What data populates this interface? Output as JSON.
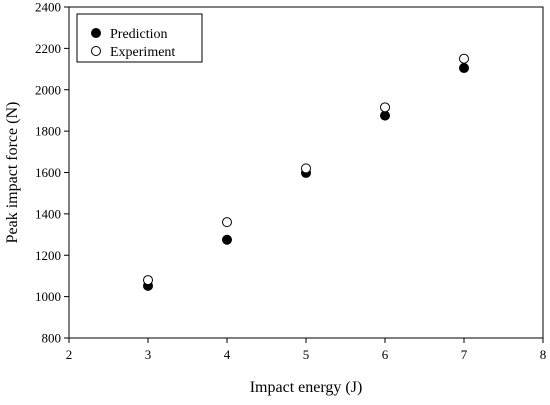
{
  "chart_data": {
    "type": "scatter",
    "title": "",
    "xlabel": "Impact energy (J)",
    "ylabel": "Peak impact force (N)",
    "xlim": [
      2,
      8
    ],
    "ylim": [
      800,
      2400
    ],
    "xticks": [
      "2",
      "3",
      "4",
      "5",
      "6",
      "7",
      "8"
    ],
    "yticks": [
      "800",
      "1000",
      "1200",
      "1400",
      "1600",
      "1800",
      "2000",
      "2200",
      "2400"
    ],
    "grid": false,
    "legend_position": "top-left",
    "series": [
      {
        "name": "Prediction",
        "marker": "filled-circle",
        "x": [
          3,
          4,
          5,
          6,
          7
        ],
        "y": [
          1052,
          1275,
          1598,
          1875,
          2105
        ]
      },
      {
        "name": "Experiment",
        "marker": "open-circle",
        "x": [
          3,
          4,
          5,
          6,
          7
        ],
        "y": [
          1080,
          1360,
          1620,
          1915,
          2150
        ]
      }
    ]
  }
}
